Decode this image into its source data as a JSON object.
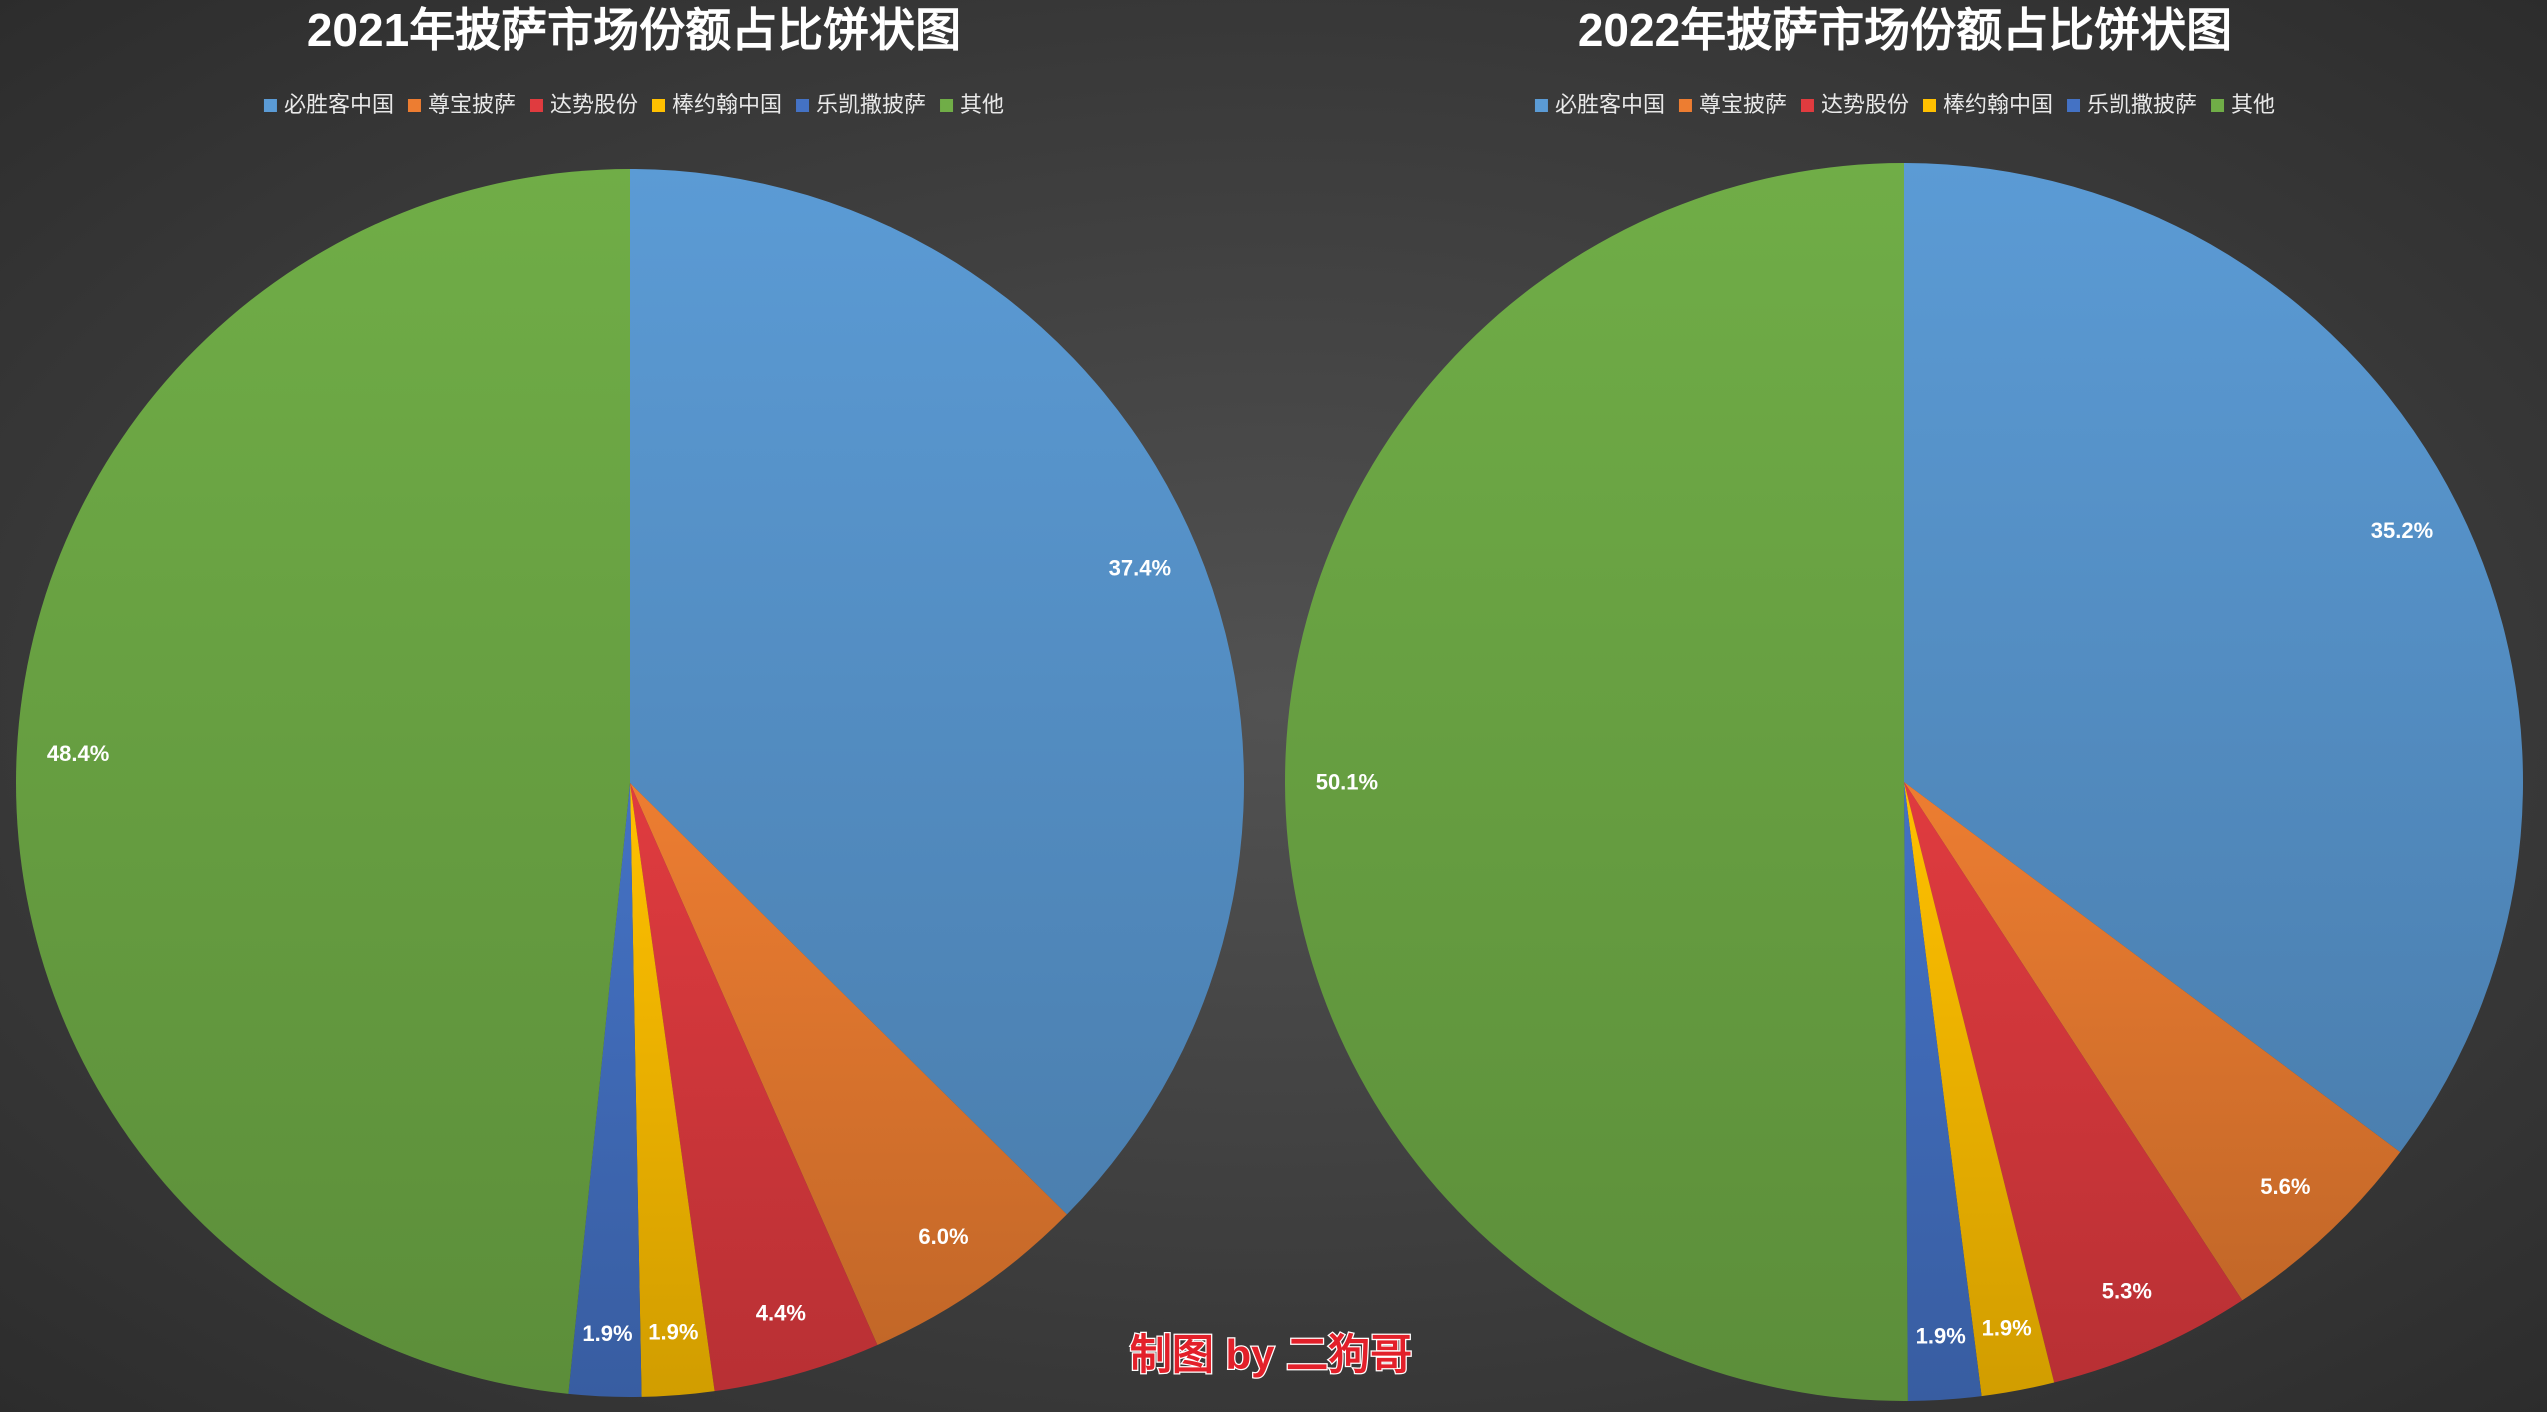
{
  "chart_data": [
    {
      "type": "pie",
      "title": "2021年披萨市场份额占比饼状图",
      "categories": [
        "必胜客中国",
        "尊宝披萨",
        "达势股份",
        "棒约翰中国",
        "乐凯撒披萨",
        "其他"
      ],
      "values": [
        37.4,
        6.0,
        4.4,
        1.9,
        1.9,
        48.4
      ],
      "value_labels": [
        "37.4%",
        "6.0%",
        "4.4%",
        "1.9%",
        "1.9%",
        "48.4%"
      ],
      "colors": [
        "#5b9bd5",
        "#ed7d31",
        "#e03b3f",
        "#ffc000",
        "#4472c4",
        "#70ad47"
      ],
      "legend": "top"
    },
    {
      "type": "pie",
      "title": "2022年披萨市场份额占比饼状图",
      "categories": [
        "必胜客中国",
        "尊宝披萨",
        "达势股份",
        "棒约翰中国",
        "乐凯撒披萨",
        "其他"
      ],
      "values": [
        35.2,
        5.6,
        5.3,
        1.9,
        1.9,
        50.1
      ],
      "value_labels": [
        "35.2%",
        "5.6%",
        "5.3%",
        "1.9%",
        "1.9%",
        "50.1%"
      ],
      "colors": [
        "#5b9bd5",
        "#ed7d31",
        "#e03b3f",
        "#ffc000",
        "#4472c4",
        "#70ad47"
      ],
      "legend": "top"
    }
  ],
  "credit": "制图 by 二狗哥"
}
